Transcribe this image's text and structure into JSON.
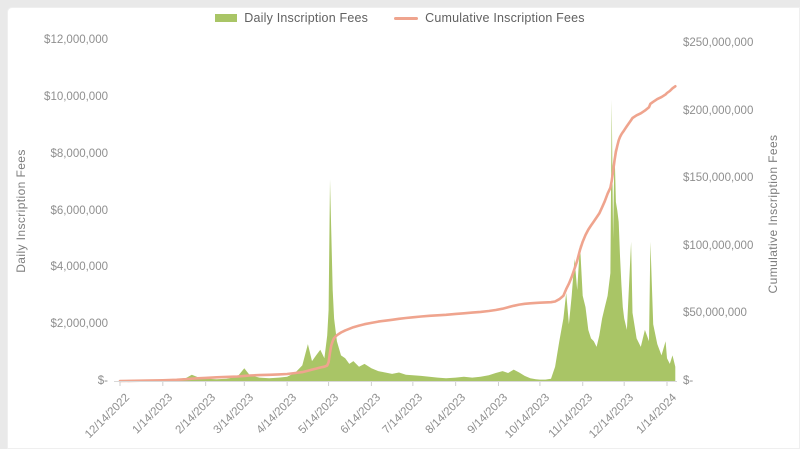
{
  "page": {
    "background": "#e9e9e9",
    "card_background": "#ffffff"
  },
  "colors": {
    "axis_text": "#8f8f8f",
    "axis_title_text": "#7e7e7e",
    "legend_text": "#616161",
    "axis_line": "#d8d8d8"
  },
  "chart_data": {
    "type": "bar",
    "subtype": "combo-bar-line-dual-axis",
    "title": "",
    "grid": false,
    "legend_position": "top",
    "x_axis": {
      "type": "date",
      "ticks": [
        "12/14/2022",
        "1/14/2023",
        "2/14/2023",
        "3/14/2023",
        "4/14/2023",
        "5/14/2023",
        "6/14/2023",
        "7/14/2023",
        "8/14/2023",
        "9/14/2023",
        "10/14/2023",
        "11/14/2023",
        "12/14/2023",
        "1/14/2024"
      ]
    },
    "left_axis": {
      "title": "Daily Inscription Fees",
      "min": 0,
      "max": 12000000,
      "tick_labels": [
        "$12,000,000",
        "$10,000,000",
        "$8,000,000",
        "$6,000,000",
        "$4,000,000",
        "$2,000,000",
        "$-"
      ]
    },
    "right_axis": {
      "title": "Cumulative Inscription Fees",
      "min": 0,
      "max": 250000000,
      "tick_labels": [
        "$250,000,000",
        "$200,000,000",
        "$150,000,000",
        "$100,000,000",
        "$50,000,000",
        "$-"
      ]
    },
    "series": [
      {
        "name": "Daily Inscription Fees",
        "type": "bar",
        "axis": "left",
        "color": "#a9c566"
      },
      {
        "name": "Cumulative Inscription Fees",
        "type": "line",
        "axis": "right",
        "color": "#efa48e"
      }
    ],
    "points_format": [
      "date",
      "daily_inscription_fees_usd",
      "cumulative_inscription_fees_usd"
    ],
    "points": [
      [
        "12/14/2022",
        10000,
        0
      ],
      [
        "12/24/2022",
        15000,
        120000
      ],
      [
        "1/3/2023",
        20000,
        300000
      ],
      [
        "1/14/2023",
        30000,
        500000
      ],
      [
        "1/24/2023",
        60000,
        900000
      ],
      [
        "1/31/2023",
        110000,
        1300000
      ],
      [
        "2/4/2023",
        220000,
        1700000
      ],
      [
        "2/8/2023",
        140000,
        2000000
      ],
      [
        "2/14/2023",
        80000,
        2300000
      ],
      [
        "2/22/2023",
        60000,
        2700000
      ],
      [
        "3/1/2023",
        80000,
        3000000
      ],
      [
        "3/9/2023",
        150000,
        3300000
      ],
      [
        "3/14/2023",
        450000,
        3800000
      ],
      [
        "3/18/2023",
        200000,
        4100000
      ],
      [
        "3/25/2023",
        120000,
        4400000
      ],
      [
        "4/1/2023",
        100000,
        4600000
      ],
      [
        "4/8/2023",
        120000,
        4900000
      ],
      [
        "4/14/2023",
        150000,
        5200000
      ],
      [
        "4/20/2023",
        300000,
        5900000
      ],
      [
        "4/25/2023",
        550000,
        6600000
      ],
      [
        "4/29/2023",
        1300000,
        7600000
      ],
      [
        "5/2/2023",
        700000,
        8400000
      ],
      [
        "5/5/2023",
        900000,
        9200000
      ],
      [
        "5/8/2023",
        1100000,
        10000000
      ],
      [
        "5/11/2023",
        800000,
        10600000
      ],
      [
        "5/13/2023",
        1600000,
        11500000
      ],
      [
        "5/14/2023",
        2500000,
        14000000
      ],
      [
        "5/15/2023",
        7100000,
        21100000
      ],
      [
        "5/16/2023",
        5200000,
        26300000
      ],
      [
        "5/17/2023",
        3200000,
        29500000
      ],
      [
        "5/18/2023",
        2200000,
        31700000
      ],
      [
        "5/20/2023",
        1400000,
        33900000
      ],
      [
        "5/23/2023",
        900000,
        35900000
      ],
      [
        "5/26/2023",
        800000,
        37400000
      ],
      [
        "5/29/2023",
        600000,
        38600000
      ],
      [
        "6/1/2023",
        700000,
        39800000
      ],
      [
        "6/5/2023",
        500000,
        41000000
      ],
      [
        "6/9/2023",
        600000,
        42000000
      ],
      [
        "6/14/2023",
        450000,
        43000000
      ],
      [
        "6/19/2023",
        350000,
        43900000
      ],
      [
        "6/24/2023",
        300000,
        44600000
      ],
      [
        "6/29/2023",
        250000,
        45300000
      ],
      [
        "7/4/2023",
        300000,
        46000000
      ],
      [
        "7/9/2023",
        220000,
        46600000
      ],
      [
        "7/14/2023",
        200000,
        47100000
      ],
      [
        "7/20/2023",
        180000,
        47700000
      ],
      [
        "7/26/2023",
        150000,
        48200000
      ],
      [
        "8/1/2023",
        120000,
        48600000
      ],
      [
        "8/7/2023",
        100000,
        49000000
      ],
      [
        "8/14/2023",
        120000,
        49600000
      ],
      [
        "8/20/2023",
        150000,
        50100000
      ],
      [
        "8/26/2023",
        120000,
        50600000
      ],
      [
        "9/1/2023",
        150000,
        51100000
      ],
      [
        "9/7/2023",
        200000,
        51800000
      ],
      [
        "9/12/2023",
        280000,
        52500000
      ],
      [
        "9/17/2023",
        350000,
        53500000
      ],
      [
        "9/21/2023",
        280000,
        54600000
      ],
      [
        "9/25/2023",
        400000,
        55600000
      ],
      [
        "9/29/2023",
        300000,
        56500000
      ],
      [
        "10/3/2023",
        180000,
        57100000
      ],
      [
        "10/7/2023",
        100000,
        57500000
      ],
      [
        "10/11/2023",
        60000,
        57800000
      ],
      [
        "10/14/2023",
        50000,
        57900000
      ],
      [
        "10/18/2023",
        50000,
        58100000
      ],
      [
        "10/22/2023",
        80000,
        58300000
      ],
      [
        "10/25/2023",
        500000,
        58800000
      ],
      [
        "10/28/2023",
        1400000,
        60500000
      ],
      [
        "10/31/2023",
        2200000,
        63000000
      ],
      [
        "11/2/2023",
        3100000,
        68000000
      ],
      [
        "11/4/2023",
        2000000,
        72000000
      ],
      [
        "11/6/2023",
        3000000,
        77000000
      ],
      [
        "11/8/2023",
        4300000,
        83000000
      ],
      [
        "11/10/2023",
        3200000,
        89000000
      ],
      [
        "11/12/2023",
        4800000,
        97000000
      ],
      [
        "11/14/2023",
        3000000,
        103000000
      ],
      [
        "11/16/2023",
        2600000,
        108000000
      ],
      [
        "11/18/2023",
        1800000,
        112000000
      ],
      [
        "11/20/2023",
        1500000,
        115000000
      ],
      [
        "11/22/2023",
        1400000,
        118000000
      ],
      [
        "11/24/2023",
        1200000,
        121000000
      ],
      [
        "11/26/2023",
        1600000,
        124000000
      ],
      [
        "11/28/2023",
        2200000,
        128500000
      ],
      [
        "11/30/2023",
        2600000,
        133000000
      ],
      [
        "12/2/2023",
        3000000,
        138500000
      ],
      [
        "12/4/2023",
        3800000,
        143000000
      ],
      [
        "12/5/2023",
        9900000,
        148000000
      ],
      [
        "12/6/2023",
        5000000,
        155000000
      ],
      [
        "12/7/2023",
        8200000,
        163000000
      ],
      [
        "12/8/2023",
        6300000,
        169500000
      ],
      [
        "12/9/2023",
        6000000,
        174000000
      ],
      [
        "12/10/2023",
        5600000,
        178000000
      ],
      [
        "12/11/2023",
        4400000,
        180500000
      ],
      [
        "12/12/2023",
        3400000,
        182500000
      ],
      [
        "12/13/2023",
        2600000,
        184000000
      ],
      [
        "12/14/2023",
        2200000,
        185500000
      ],
      [
        "12/16/2023",
        1800000,
        188500000
      ],
      [
        "12/19/2023",
        4900000,
        193000000
      ],
      [
        "12/20/2023",
        2400000,
        194500000
      ],
      [
        "12/23/2023",
        1500000,
        196500000
      ],
      [
        "12/26/2023",
        1200000,
        198000000
      ],
      [
        "12/29/2023",
        1800000,
        200000000
      ],
      [
        "1/1/2024",
        1400000,
        202500000
      ],
      [
        "1/2/2024",
        4900000,
        205000000
      ],
      [
        "1/4/2024",
        2000000,
        206500000
      ],
      [
        "1/7/2024",
        1300000,
        208500000
      ],
      [
        "1/10/2024",
        900000,
        210000000
      ],
      [
        "1/13/2024",
        1400000,
        212000000
      ],
      [
        "1/14/2024",
        800000,
        213000000
      ],
      [
        "1/16/2024",
        600000,
        214500000
      ],
      [
        "1/18/2024",
        900000,
        216500000
      ],
      [
        "1/20/2024",
        500000,
        218000000
      ]
    ]
  }
}
